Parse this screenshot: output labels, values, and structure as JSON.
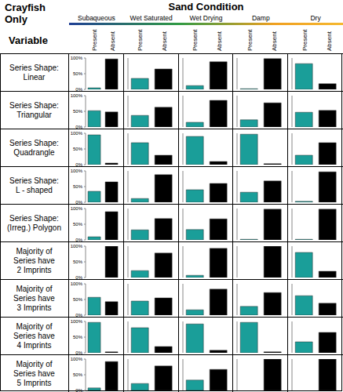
{
  "title": [
    "Crayfish",
    "Only"
  ],
  "column_title": "Sand Condition",
  "row_title": "Variable",
  "columns": [
    "Subaqueous",
    "Wet Saturated",
    "Wet Drying",
    "Damp",
    "Dry"
  ],
  "chart_data": {
    "type": "bar",
    "categories": [
      "Present",
      "Absent"
    ],
    "colors": [
      "#1a9e99",
      "#000000"
    ],
    "ylim": [
      0,
      100
    ],
    "yticks": [
      {
        "value": 0,
        "label": "0%"
      },
      {
        "value": 50,
        "label": "50%"
      },
      {
        "value": 100,
        "label": "100%"
      }
    ],
    "tick_labels": "y",
    "rows": [
      {
        "label": [
          "Series Shape:",
          "Linear"
        ],
        "values": [
          [
            5,
            97
          ],
          [
            35,
            65
          ],
          [
            12,
            88
          ],
          [
            2,
            98
          ],
          [
            82,
            18
          ]
        ]
      },
      {
        "label": [
          "Series Shape:",
          "Triangular"
        ],
        "values": [
          [
            52,
            48
          ],
          [
            37,
            63
          ],
          [
            15,
            85
          ],
          [
            23,
            77
          ],
          [
            47,
            53
          ]
        ]
      },
      {
        "label": [
          "Series Shape:",
          "Quadrangle"
        ],
        "values": [
          [
            95,
            5
          ],
          [
            70,
            30
          ],
          [
            90,
            10
          ],
          [
            97,
            3
          ],
          [
            30,
            70
          ]
        ]
      },
      {
        "label": [
          "Series Shape:",
          "L - shaped"
        ],
        "values": [
          [
            35,
            65
          ],
          [
            12,
            88
          ],
          [
            40,
            60
          ],
          [
            32,
            68
          ],
          [
            3,
            97
          ]
        ]
      },
      {
        "label": [
          "Series Shape:",
          "(Irreg.) Polygon"
        ],
        "values": [
          [
            10,
            90
          ],
          [
            32,
            68
          ],
          [
            33,
            67
          ],
          [
            2,
            98
          ],
          [
            2,
            98
          ]
        ]
      },
      {
        "label": [
          "Majority of",
          "Series have",
          "2 Imprints"
        ],
        "values": [
          [
            0,
            100
          ],
          [
            22,
            78
          ],
          [
            7,
            93
          ],
          [
            0,
            100
          ],
          [
            80,
            20
          ]
        ]
      },
      {
        "label": [
          "Majority of",
          "Series have",
          "3 Imprints"
        ],
        "values": [
          [
            57,
            43
          ],
          [
            45,
            55
          ],
          [
            17,
            83
          ],
          [
            28,
            72
          ],
          [
            62,
            38
          ]
        ]
      },
      {
        "label": [
          "Majority of",
          "Series have",
          "4 Imprints"
        ],
        "values": [
          [
            97,
            3
          ],
          [
            80,
            20
          ],
          [
            92,
            8
          ],
          [
            97,
            3
          ],
          [
            35,
            65
          ]
        ]
      },
      {
        "label": [
          "Majority of",
          "Series have",
          "5 Imprints"
        ],
        "values": [
          [
            8,
            92
          ],
          [
            22,
            78
          ],
          [
            33,
            67
          ],
          [
            0,
            100
          ],
          [
            0,
            100
          ]
        ]
      }
    ]
  }
}
